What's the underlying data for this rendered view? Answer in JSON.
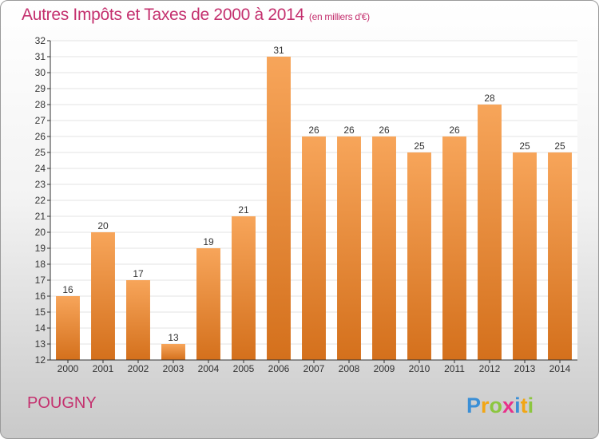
{
  "title": "Autres Impôts et Taxes de 2000 à 2014",
  "unit": "(en milliers d'€)",
  "city": "POUGNY",
  "logo_text": "Proxiti",
  "colors": {
    "title": "#c4306e",
    "city": "#c4306e",
    "bar_top": "#f7a55a",
    "bar_bottom": "#d4701c",
    "axis": "#333333",
    "grid": "#e3e3e3"
  },
  "chart_data": {
    "type": "bar",
    "categories": [
      "2000",
      "2001",
      "2002",
      "2003",
      "2004",
      "2005",
      "2006",
      "2007",
      "2008",
      "2009",
      "2010",
      "2011",
      "2012",
      "2013",
      "2014"
    ],
    "values": [
      16,
      20,
      17,
      13,
      19,
      21,
      31,
      26,
      26,
      26,
      25,
      26,
      28,
      25,
      25
    ],
    "ylim": [
      12,
      32
    ],
    "yticks": [
      12,
      13,
      14,
      15,
      16,
      17,
      18,
      19,
      20,
      21,
      22,
      23,
      24,
      25,
      26,
      27,
      28,
      29,
      30,
      31,
      32
    ],
    "grid": true,
    "data_labels": true
  }
}
